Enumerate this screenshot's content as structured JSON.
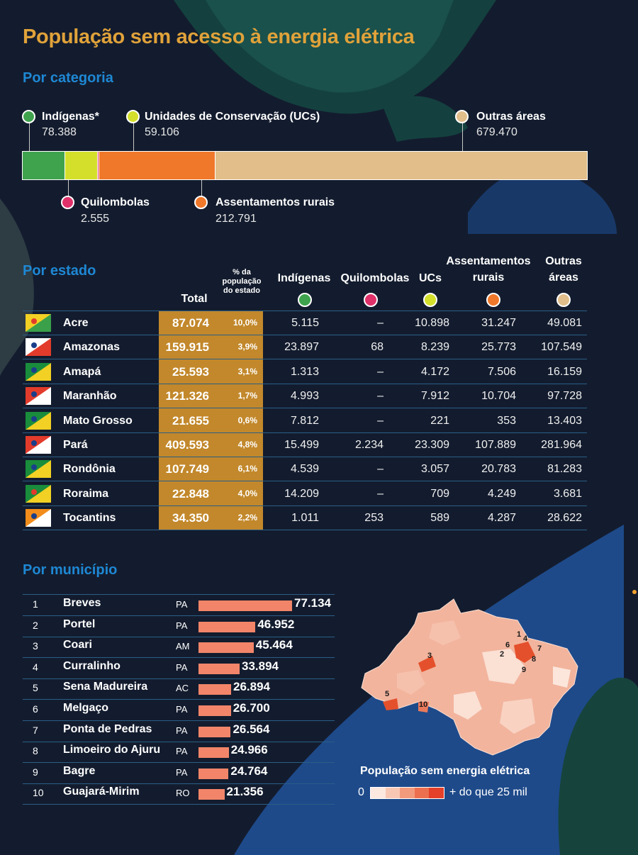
{
  "title": "População sem acesso à energia elétrica",
  "sections": {
    "categoria": "Por categoria",
    "estado": "Por estado",
    "municipio": "Por município"
  },
  "categories": [
    {
      "name": "Indígenas*",
      "value": "78.388",
      "color": "#3fa34d"
    },
    {
      "name": "Unidades de Conservação (UCs)",
      "value": "59.106",
      "color": "#d4df2c"
    },
    {
      "name": "Assentamentos rurais",
      "value": "212.791",
      "color": "#f0782a"
    },
    {
      "name": "Outras áreas",
      "value": "679.470",
      "color": "#e1be8a"
    },
    {
      "name": "Quilombolas",
      "value": "2.555",
      "color": "#e0306a"
    }
  ],
  "table": {
    "headers": {
      "total": "Total",
      "pct": [
        "% da",
        "população",
        "do estado"
      ],
      "indigenas": "Indígenas",
      "quilombolas": "Quilombolas",
      "ucs": "UCs",
      "assentamentos": [
        "Assentamentos",
        "rurais"
      ],
      "outras": [
        "Outras",
        "áreas"
      ]
    },
    "rows": [
      {
        "state": "Acre",
        "total": "87.074",
        "pct": "10,0%",
        "ind": "5.115",
        "qui": "–",
        "ucs": "10.898",
        "ass": "31.247",
        "out": "49.081"
      },
      {
        "state": "Amazonas",
        "total": "159.915",
        "pct": "3,9%",
        "ind": "23.897",
        "qui": "68",
        "ucs": "8.239",
        "ass": "25.773",
        "out": "107.549"
      },
      {
        "state": "Amapá",
        "total": "25.593",
        "pct": "3,1%",
        "ind": "1.313",
        "qui": "–",
        "ucs": "4.172",
        "ass": "7.506",
        "out": "16.159"
      },
      {
        "state": "Maranhão",
        "total": "121.326",
        "pct": "1,7%",
        "ind": "4.993",
        "qui": "–",
        "ucs": "7.912",
        "ass": "10.704",
        "out": "97.728"
      },
      {
        "state": "Mato Grosso",
        "total": "21.655",
        "pct": "0,6%",
        "ind": "7.812",
        "qui": "–",
        "ucs": "221",
        "ass": "353",
        "out": "13.403"
      },
      {
        "state": "Pará",
        "total": "409.593",
        "pct": "4,8%",
        "ind": "15.499",
        "qui": "2.234",
        "ucs": "23.309",
        "ass": "107.889",
        "out": "281.964"
      },
      {
        "state": "Rondônia",
        "total": "107.749",
        "pct": "6,1%",
        "ind": "4.539",
        "qui": "–",
        "ucs": "3.057",
        "ass": "20.783",
        "out": "81.283"
      },
      {
        "state": "Roraima",
        "total": "22.848",
        "pct": "4,0%",
        "ind": "14.209",
        "qui": "–",
        "ucs": "709",
        "ass": "4.249",
        "out": "3.681"
      },
      {
        "state": "Tocantins",
        "total": "34.350",
        "pct": "2,2%",
        "ind": "1.011",
        "qui": "253",
        "ucs": "589",
        "ass": "4.287",
        "out": "28.622"
      }
    ]
  },
  "municipios": [
    {
      "rank": "1",
      "name": "Breves",
      "uf": "PA",
      "label": "77.134"
    },
    {
      "rank": "2",
      "name": "Portel",
      "uf": "PA",
      "label": "46.952"
    },
    {
      "rank": "3",
      "name": "Coari",
      "uf": "AM",
      "label": "45.464"
    },
    {
      "rank": "4",
      "name": "Curralinho",
      "uf": "PA",
      "label": "33.894"
    },
    {
      "rank": "5",
      "name": "Sena Madureira",
      "uf": "AC",
      "label": "26.894"
    },
    {
      "rank": "6",
      "name": "Melgaço",
      "uf": "PA",
      "label": "26.700"
    },
    {
      "rank": "7",
      "name": "Ponta de Pedras",
      "uf": "PA",
      "label": "26.564"
    },
    {
      "rank": "8",
      "name": "Limoeiro do Ajuru",
      "uf": "PA",
      "label": "24.966"
    },
    {
      "rank": "9",
      "name": "Bagre",
      "uf": "PA",
      "label": "24.764"
    },
    {
      "rank": "10",
      "name": "Guajará-Mirim",
      "uf": "RO",
      "label": "21.356"
    }
  ],
  "map": {
    "title": "População sem energia elétrica",
    "scale_min": "0",
    "scale_max": "+ do que 25 mil",
    "markers": [
      "1",
      "2",
      "3",
      "4",
      "5",
      "6",
      "7",
      "8",
      "9",
      "10"
    ]
  },
  "chart_data": [
    {
      "type": "bar",
      "title": "Por categoria",
      "stacked": true,
      "categories": [
        "Indígenas*",
        "Unidades de Conservação (UCs)",
        "Assentamentos rurais",
        "Outras áreas",
        "Quilombolas"
      ],
      "values": [
        78388,
        59106,
        212791,
        679470,
        2555
      ]
    },
    {
      "type": "table",
      "title": "Por estado",
      "columns": [
        "Total",
        "% da população do estado",
        "Indígenas",
        "Quilombolas",
        "UCs",
        "Assentamentos rurais",
        "Outras áreas"
      ],
      "rows": [
        "Acre",
        "Amazonas",
        "Amapá",
        "Maranhão",
        "Mato Grosso",
        "Pará",
        "Rondônia",
        "Roraima",
        "Tocantins"
      ]
    },
    {
      "type": "bar",
      "title": "Por município",
      "orientation": "horizontal",
      "categories": [
        "Breves",
        "Portel",
        "Coari",
        "Curralinho",
        "Sena Madureira",
        "Melgaço",
        "Ponta de Pedras",
        "Limoeiro do Ajuru",
        "Bagre",
        "Guajará-Mirim"
      ],
      "values": [
        77134,
        46952,
        45464,
        33894,
        26894,
        26700,
        26564,
        24966,
        24764,
        21356
      ],
      "xlim": [
        0,
        77134
      ]
    }
  ]
}
